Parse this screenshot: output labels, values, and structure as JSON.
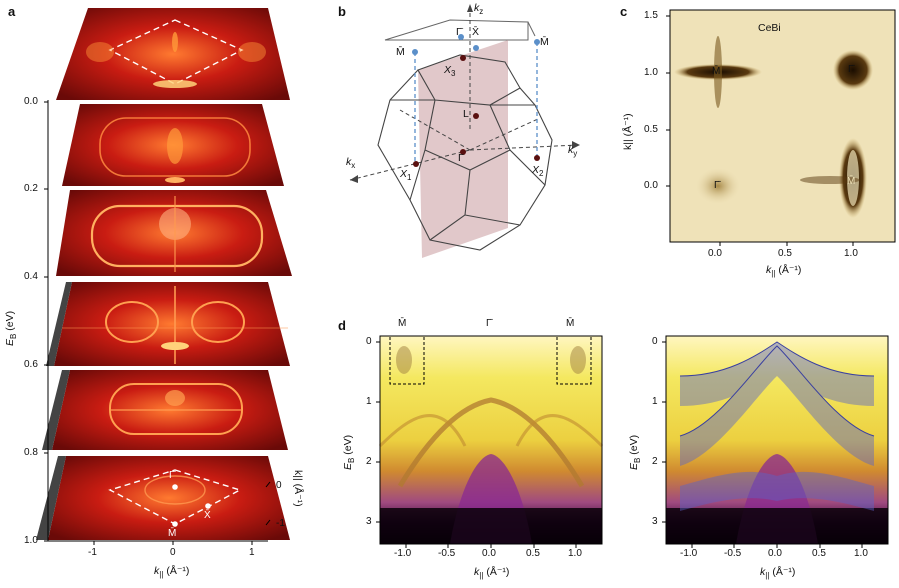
{
  "panels": {
    "a": {
      "label": "a",
      "energy_ticks": [
        "0.0",
        "0.2",
        "0.4",
        "0.6",
        "0.8",
        "1.0"
      ],
      "energy_axis_label": "E",
      "energy_axis_sub": "B",
      "energy_axis_unit": "(eV)",
      "kx_ticks": [
        "-1",
        "0",
        "1"
      ],
      "kx_label": "k",
      "kx_sub": "||",
      "kx_unit": "(Å⁻¹)",
      "ky_ticks": [
        "0",
        "-1"
      ],
      "ky_label": "k|| (Å⁻¹)",
      "points": {
        "gamma": "Γ̄",
        "x": "X̄",
        "m": "M̄"
      },
      "colors": {
        "hot": "#ff9a3a",
        "mid": "#c81e10",
        "dark": "#2a0606"
      }
    },
    "b": {
      "label": "b",
      "kz": "k",
      "kz_sub": "z",
      "kx": "k",
      "kx_sub": "x",
      "ky": "k",
      "ky_sub": "y",
      "surface_points": {
        "gamma": "Γ̄",
        "x": "X̄",
        "m_left": "M̄",
        "m_right": "M̄"
      },
      "bulk_points": {
        "gamma": "Γ",
        "l": "L",
        "x1": "X",
        "x1_sub": "1",
        "x2": "X",
        "x2_sub": "2",
        "x3": "X",
        "x3_sub": "3"
      },
      "colors": {
        "plane": "#c99a9e",
        "bulk_dot": "#5a1010",
        "surface_dot": "#5b8fc9"
      }
    },
    "c": {
      "label": "c",
      "material": "CeBi",
      "y_ticks": [
        "1.5",
        "1.0",
        "0.5",
        "0.0"
      ],
      "x_ticks": [
        "0.0",
        "0.5",
        "1.0"
      ],
      "y_axis_label": "k|| (Å⁻¹)",
      "x_axis_label": "k",
      "x_axis_sub": "||",
      "x_axis_unit": "(Å⁻¹)",
      "points": {
        "m_top": "M̄",
        "gamma_top": "Γ̄",
        "gamma_bottom": "Γ̄",
        "m_bottom": "M̄"
      },
      "colors": {
        "bg": "#efe2b8",
        "feature": "#3a2708"
      }
    },
    "d": {
      "label": "d",
      "points": {
        "m_left": "M̄",
        "gamma": "Γ̄",
        "m_right": "M̄"
      },
      "y_ticks": [
        "0",
        "1",
        "2",
        "3"
      ],
      "x_ticks": [
        "-1.0",
        "-0.5",
        "0.0",
        "0.5",
        "1.0"
      ],
      "y_axis_label": "E",
      "y_axis_sub": "B",
      "y_axis_unit": "(eV)",
      "x_axis_label": "k",
      "x_axis_sub": "||",
      "x_axis_unit": "(Å⁻¹)",
      "colors": {
        "yellow": "#f0e040",
        "orange": "#c87a2a",
        "purple": "#7a2a8a",
        "black": "#080008",
        "band_overlay": "#5a64c8"
      }
    }
  }
}
